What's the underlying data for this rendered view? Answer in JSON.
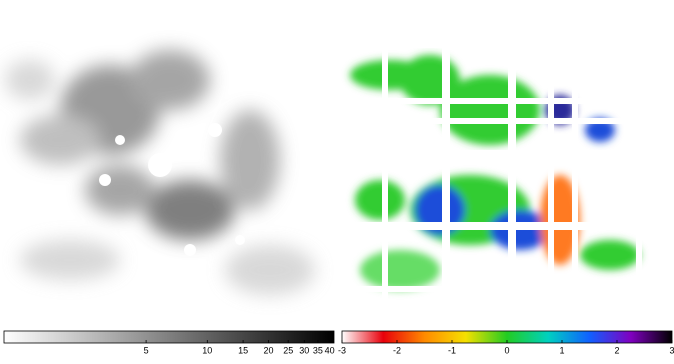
{
  "chart_data": [
    {
      "type": "image",
      "xlim": [
        1,
        42
      ],
      "log": true,
      "xticks": [
        5,
        10,
        15,
        20,
        25,
        30,
        35,
        40
      ],
      "colormap": [
        "#ffffff",
        "#000000"
      ]
    },
    {
      "type": "image",
      "xlim": [
        -3,
        3
      ],
      "log": false,
      "xticks": [
        -3,
        -2,
        -1,
        0,
        1,
        2,
        3
      ],
      "colormap": [
        "#ffffff",
        "#e8000b",
        "#ff8a00",
        "#f5e000",
        "#22cc22",
        "#00d0c0",
        "#1060ff",
        "#8000c0",
        "#000000"
      ]
    }
  ]
}
